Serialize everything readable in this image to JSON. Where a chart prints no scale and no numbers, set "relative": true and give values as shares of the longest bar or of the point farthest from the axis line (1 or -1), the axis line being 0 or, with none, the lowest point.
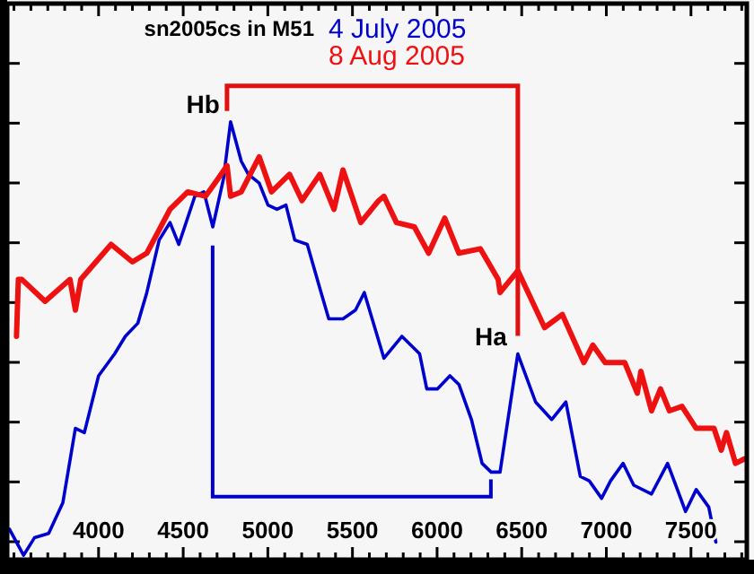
{
  "chart_data": {
    "type": "line",
    "title": "sn2005cs in M51",
    "relative": true,
    "legend": "top",
    "xlim": [
      3460,
      7830
    ],
    "xticks": [
      {
        "value": 3500,
        "label": null
      },
      {
        "value": 3600,
        "label": null
      },
      {
        "value": 3700,
        "label": null
      },
      {
        "value": 3800,
        "label": null
      },
      {
        "value": 3900,
        "label": null
      },
      4000,
      {
        "value": 4100,
        "label": null
      },
      {
        "value": 4200,
        "label": null
      },
      {
        "value": 4300,
        "label": null
      },
      {
        "value": 4400,
        "label": null
      },
      4500,
      {
        "value": 4600,
        "label": null
      },
      {
        "value": 4700,
        "label": null
      },
      {
        "value": 4800,
        "label": null
      },
      {
        "value": 4900,
        "label": null
      },
      5000,
      {
        "value": 5100,
        "label": null
      },
      {
        "value": 5200,
        "label": null
      },
      {
        "value": 5300,
        "label": null
      },
      {
        "value": 5400,
        "label": null
      },
      5500,
      {
        "value": 5600,
        "label": null
      },
      {
        "value": 5700,
        "label": null
      },
      {
        "value": 5800,
        "label": null
      },
      {
        "value": 5900,
        "label": null
      },
      6000,
      {
        "value": 6100,
        "label": null
      },
      {
        "value": 6200,
        "label": null
      },
      {
        "value": 6300,
        "label": null
      },
      {
        "value": 6400,
        "label": null
      },
      6500,
      {
        "value": 6600,
        "label": null
      },
      {
        "value": 6700,
        "label": null
      },
      {
        "value": 6800,
        "label": null
      },
      {
        "value": 6900,
        "label": null
      },
      7000,
      {
        "value": 7100,
        "label": null
      },
      {
        "value": 7200,
        "label": null
      },
      {
        "value": 7300,
        "label": null
      },
      {
        "value": 7400,
        "label": null
      },
      7500,
      {
        "value": 7600,
        "label": null
      },
      {
        "value": 7700,
        "label": null
      },
      {
        "value": 7800,
        "label": null
      }
    ],
    "annotations": [
      {
        "text": "Hb",
        "x": 4780,
        "y": 1.0
      },
      {
        "text": "Ha",
        "x": 6477,
        "y": 0.47
      }
    ],
    "series": [
      {
        "name": "4 July 2005",
        "color": "#0000cc",
        "x": [
          3473,
          3557,
          3621,
          3705,
          3789,
          3863,
          3916,
          4000,
          4095,
          4158,
          4232,
          4285,
          4358,
          4422,
          4474,
          4569,
          4622,
          4675,
          4738,
          4780,
          4843,
          4885,
          4949,
          5001,
          5054,
          5107,
          5159,
          5233,
          5307,
          5360,
          5444,
          5518,
          5570,
          5686,
          5792,
          5897,
          5939,
          6003,
          6076,
          6129,
          6203,
          6266,
          6319,
          6372,
          6477,
          6582,
          6677,
          6761,
          6846,
          6899,
          6972,
          7025,
          7099,
          7162,
          7267,
          7362,
          7468,
          7531,
          7605,
          7647
        ],
        "values": [
          0.07,
          0.01,
          0.05,
          0.06,
          0.13,
          0.3,
          0.29,
          0.42,
          0.47,
          0.51,
          0.54,
          0.61,
          0.73,
          0.77,
          0.72,
          0.83,
          0.84,
          0.76,
          0.87,
          1.0,
          0.91,
          0.88,
          0.86,
          0.81,
          0.8,
          0.81,
          0.73,
          0.72,
          0.62,
          0.55,
          0.55,
          0.57,
          0.61,
          0.46,
          0.51,
          0.47,
          0.39,
          0.39,
          0.42,
          0.4,
          0.32,
          0.22,
          0.2,
          0.2,
          0.47,
          0.36,
          0.32,
          0.36,
          0.19,
          0.18,
          0.14,
          0.18,
          0.22,
          0.17,
          0.15,
          0.22,
          0.11,
          0.16,
          0.12,
          0.04
        ]
      },
      {
        "name": "8 Aug 2005",
        "color": "#ee1111",
        "x": [
          3515,
          3526,
          3547,
          3684,
          3831,
          3863,
          3895,
          4074,
          4200,
          4285,
          4422,
          4527,
          4632,
          4706,
          4759,
          4780,
          4843,
          4949,
          5022,
          5128,
          5202,
          5307,
          5391,
          5444,
          5549,
          5655,
          5686,
          5760,
          5866,
          5950,
          6045,
          6129,
          6256,
          6361,
          6372,
          6477,
          6635,
          6740,
          6867,
          6920,
          6993,
          7109,
          7183,
          7204,
          7267,
          7320,
          7373,
          7447,
          7531,
          7636,
          7679,
          7710,
          7763,
          7815
        ],
        "values": [
          0.51,
          0.64,
          0.64,
          0.59,
          0.64,
          0.57,
          0.64,
          0.72,
          0.68,
          0.7,
          0.8,
          0.84,
          0.83,
          0.87,
          0.9,
          0.83,
          0.84,
          0.92,
          0.84,
          0.88,
          0.82,
          0.88,
          0.8,
          0.89,
          0.77,
          0.82,
          0.83,
          0.77,
          0.76,
          0.7,
          0.78,
          0.7,
          0.71,
          0.64,
          0.61,
          0.66,
          0.53,
          0.56,
          0.45,
          0.49,
          0.45,
          0.45,
          0.38,
          0.43,
          0.34,
          0.39,
          0.34,
          0.35,
          0.3,
          0.3,
          0.25,
          0.29,
          0.22,
          0.23
        ]
      }
    ]
  }
}
